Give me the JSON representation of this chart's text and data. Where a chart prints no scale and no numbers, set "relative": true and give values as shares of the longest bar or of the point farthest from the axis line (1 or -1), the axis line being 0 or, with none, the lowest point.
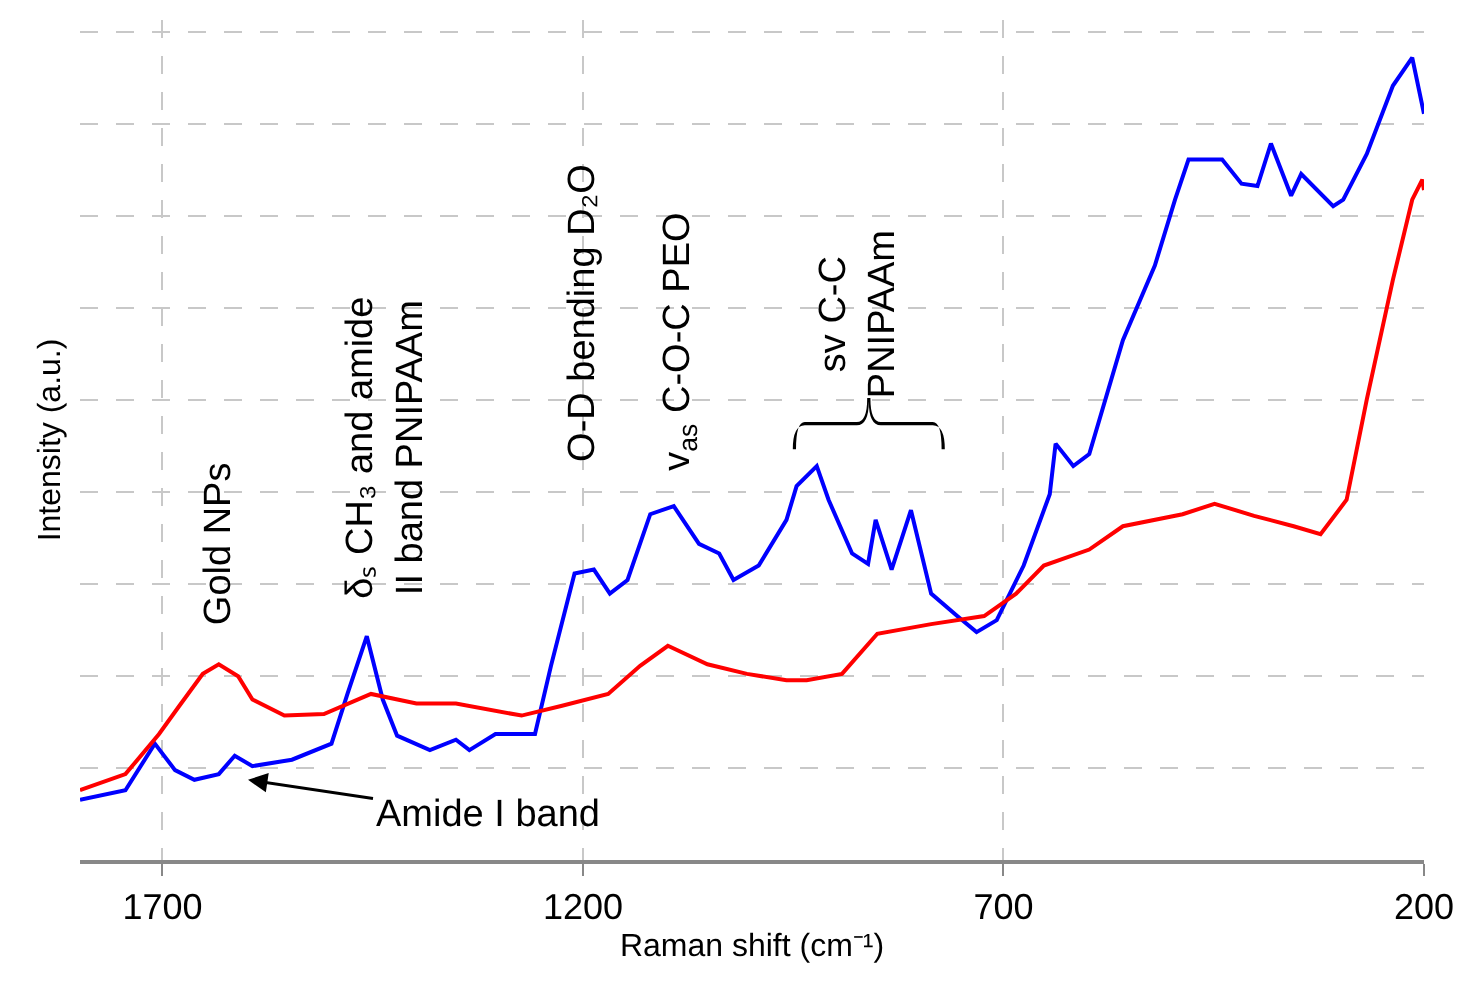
{
  "chart_data": {
    "type": "line",
    "relative": true,
    "xlabel": "Raman shift (cm⁻¹)",
    "ylabel": "Intensity (a.u.)",
    "xlim": [
      1798,
      200
    ],
    "xticks": [
      1700,
      1200,
      700,
      200
    ],
    "grid": true,
    "marker": "none",
    "line_style": "solid",
    "series": [
      {
        "color": "#0000ff",
        "x": [
          1798,
          1744,
          1709,
          1685,
          1662,
          1633,
          1614,
          1593,
          1546,
          1499,
          1480,
          1457,
          1438,
          1421,
          1382,
          1351,
          1335,
          1304,
          1257,
          1238,
          1210,
          1187,
          1168,
          1147,
          1120,
          1092,
          1062,
          1038,
          1021,
          991,
          958,
          946,
          922,
          908,
          880,
          861,
          852,
          833,
          810,
          786,
          755,
          732,
          708,
          676,
          645,
          638,
          617,
          598,
          558,
          520,
          496,
          480,
          440,
          417,
          398,
          382,
          358,
          346,
          308,
          296,
          268,
          237,
          214,
          200
        ],
        "values": [
          0.075,
          0.087,
          0.145,
          0.112,
          0.1,
          0.107,
          0.13,
          0.117,
          0.125,
          0.145,
          0.207,
          0.279,
          0.2,
          0.155,
          0.137,
          0.15,
          0.137,
          0.157,
          0.157,
          0.242,
          0.357,
          0.362,
          0.332,
          0.349,
          0.431,
          0.441,
          0.394,
          0.382,
          0.349,
          0.367,
          0.424,
          0.466,
          0.491,
          0.449,
          0.382,
          0.369,
          0.424,
          0.362,
          0.436,
          0.332,
          0.304,
          0.284,
          0.299,
          0.367,
          0.456,
          0.519,
          0.491,
          0.506,
          0.648,
          0.741,
          0.823,
          0.873,
          0.873,
          0.843,
          0.84,
          0.893,
          0.828,
          0.855,
          0.815,
          0.823,
          0.88,
          0.965,
          1.0,
          0.93
        ]
      },
      {
        "color": "#ff0000",
        "x": [
          1798,
          1744,
          1704,
          1680,
          1652,
          1633,
          1610,
          1593,
          1555,
          1508,
          1452,
          1398,
          1351,
          1273,
          1226,
          1170,
          1132,
          1099,
          1052,
          1005,
          958,
          934,
          892,
          850,
          786,
          723,
          685,
          652,
          598,
          558,
          487,
          449,
          402,
          355,
          323,
          292,
          268,
          237,
          214,
          202,
          200
        ],
        "values": [
          0.087,
          0.107,
          0.157,
          0.192,
          0.232,
          0.244,
          0.229,
          0.2,
          0.18,
          0.182,
          0.207,
          0.195,
          0.195,
          0.18,
          0.192,
          0.207,
          0.242,
          0.267,
          0.244,
          0.232,
          0.224,
          0.224,
          0.232,
          0.282,
          0.294,
          0.304,
          0.332,
          0.367,
          0.387,
          0.416,
          0.431,
          0.444,
          0.429,
          0.416,
          0.406,
          0.449,
          0.574,
          0.723,
          0.823,
          0.848,
          0.835
        ]
      }
    ],
    "annotations": [
      "Gold NPs",
      "δₛ CH₃ and amide\nII band PNIPAAm",
      "O-D bending D₂O",
      "v$_{as}$ C-O-C PEO",
      "sv C-C\nPNIPAAm",
      "Amide I band"
    ]
  }
}
